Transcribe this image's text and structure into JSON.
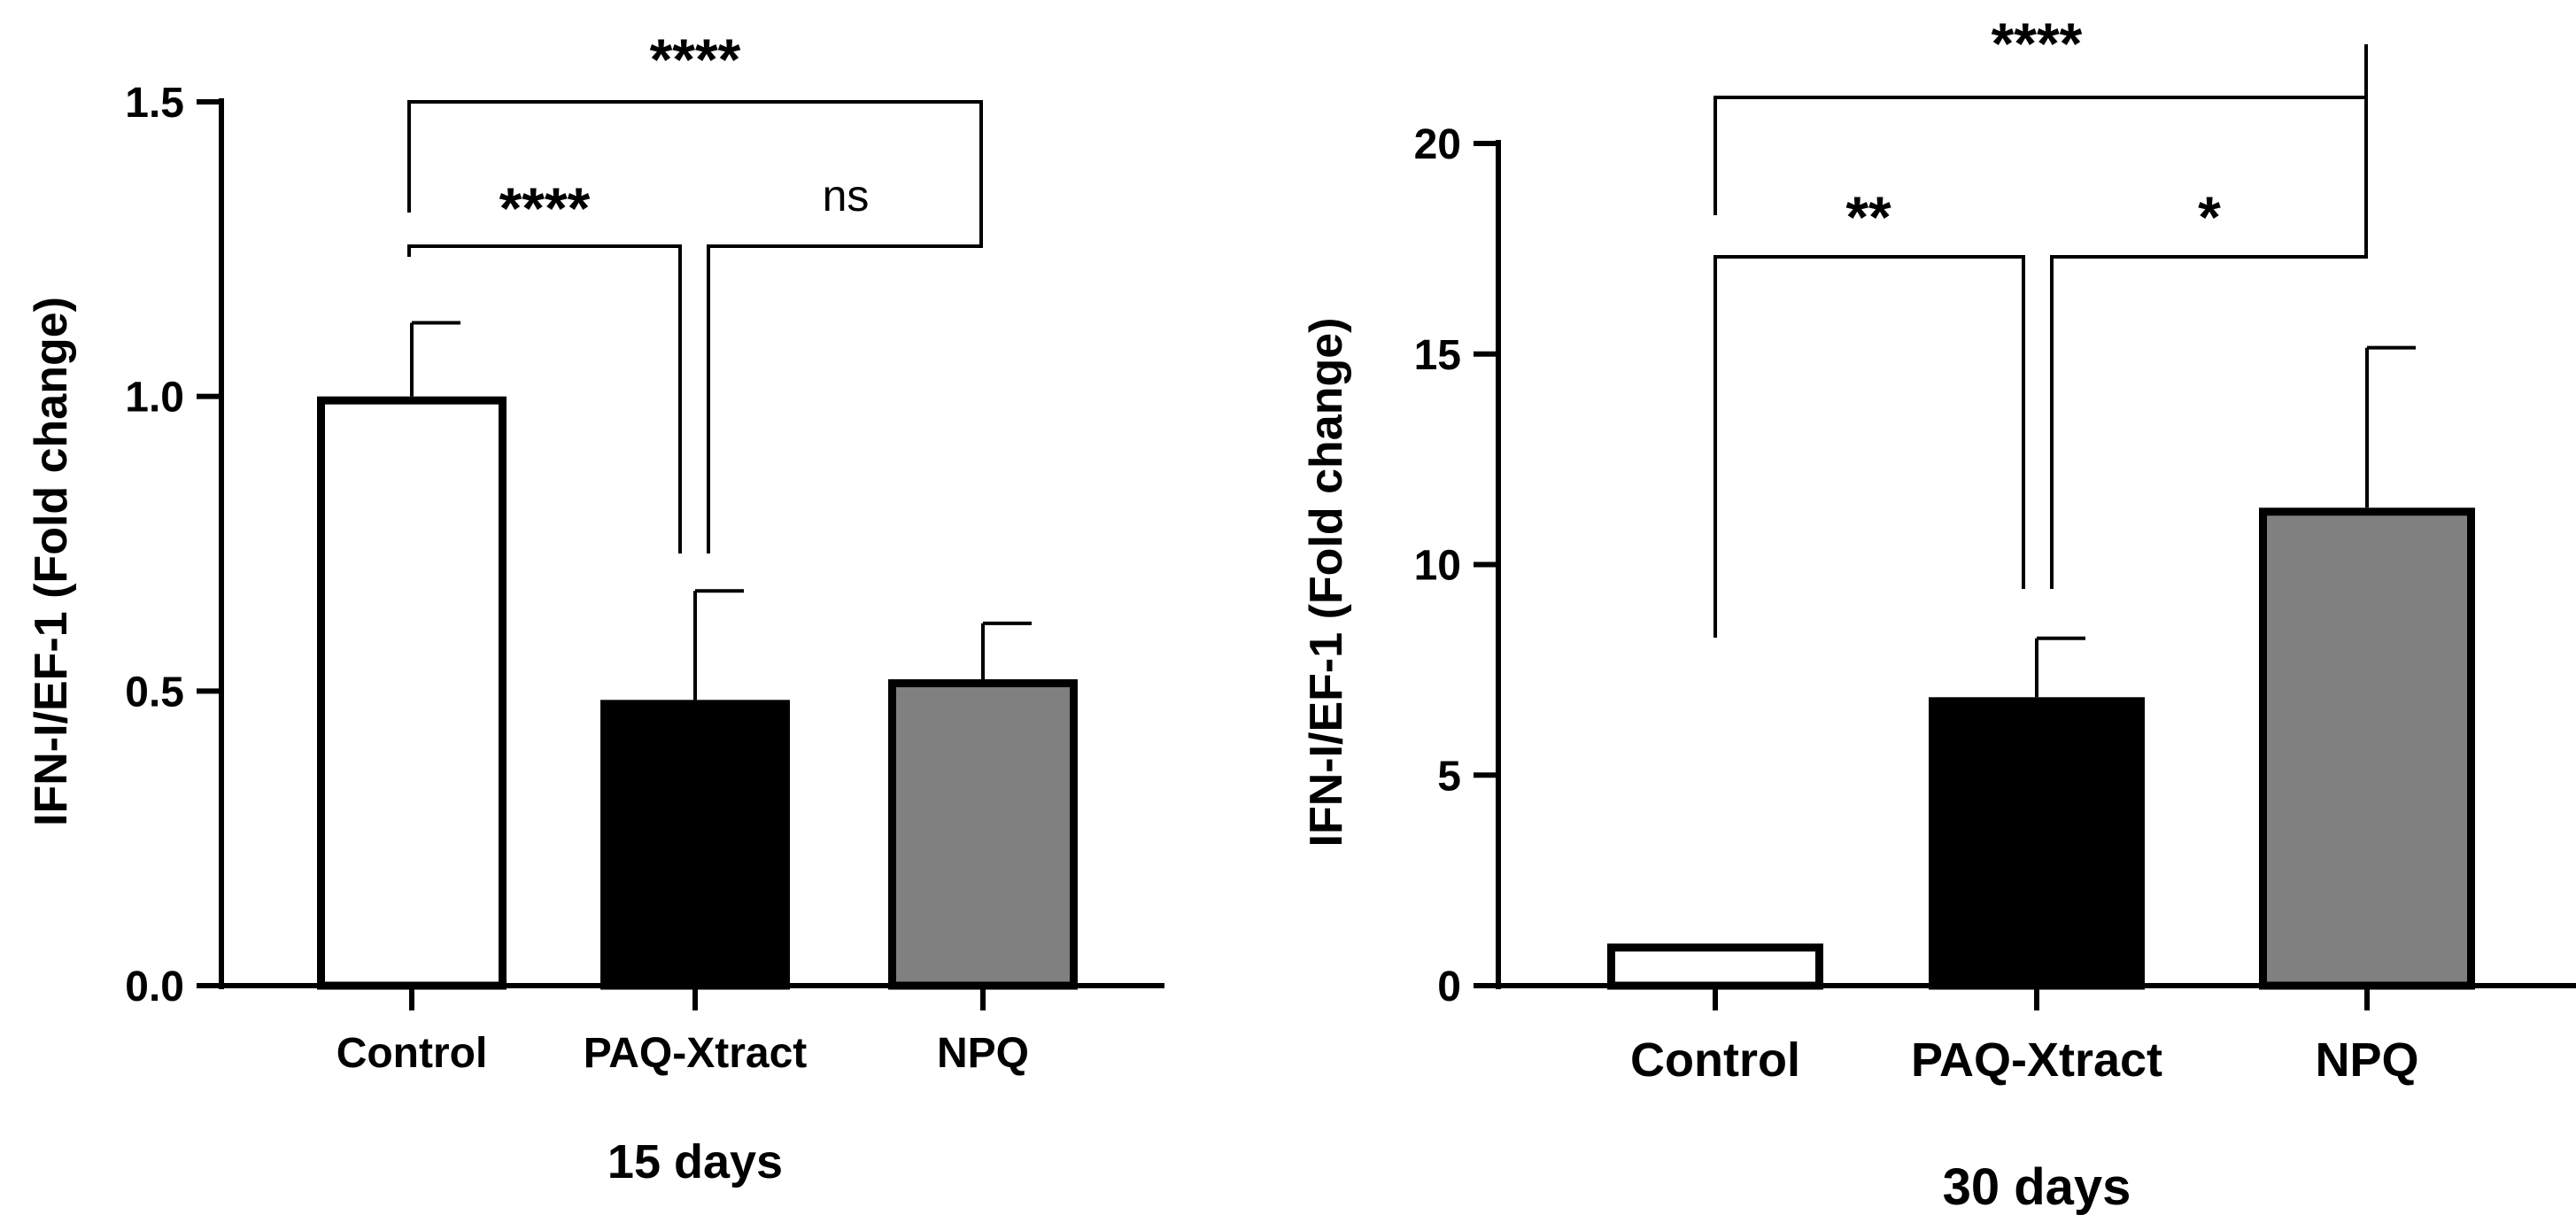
{
  "chart_data": [
    {
      "type": "bar",
      "title": "",
      "xlabel": "15 days",
      "ylabel": "IFN-I/EF-1 (Fold change)",
      "ylim": [
        0,
        1.5
      ],
      "yticks": [
        0.0,
        0.5,
        1.0,
        1.5
      ],
      "ytick_labels": [
        "0.0",
        "0.5",
        "1.0",
        "1.5"
      ],
      "categories": [
        "Control",
        "PAQ-Xtract",
        "NPQ"
      ],
      "values": [
        1.0,
        0.485,
        0.52
      ],
      "errors": [
        0.125,
        0.185,
        0.095
      ],
      "colors": [
        "#ffffff",
        "#000000",
        "#808080"
      ],
      "significance": [
        {
          "from": 0,
          "to": 2,
          "label": "****"
        },
        {
          "from": 0,
          "to": 1,
          "label": "****"
        },
        {
          "from": 1,
          "to": 2,
          "label": "ns"
        }
      ]
    },
    {
      "type": "bar",
      "title": "",
      "xlabel": "30 days",
      "ylabel": "IFN-I/EF-1 (Fold change)",
      "ylim": [
        0,
        20
      ],
      "yticks": [
        0,
        5,
        10,
        15,
        20
      ],
      "ytick_labels": [
        "0",
        "5",
        "10",
        "15",
        "20"
      ],
      "categories": [
        "Control",
        "PAQ-Xtract",
        "NPQ"
      ],
      "values": [
        1.0,
        6.85,
        11.35
      ],
      "errors": [
        0,
        1.4,
        3.8
      ],
      "colors": [
        "#ffffff",
        "#000000",
        "#808080"
      ],
      "significance": [
        {
          "from": 0,
          "to": 2,
          "label": "****"
        },
        {
          "from": 0,
          "to": 1,
          "label": "**"
        },
        {
          "from": 1,
          "to": 2,
          "label": "*"
        }
      ]
    }
  ]
}
